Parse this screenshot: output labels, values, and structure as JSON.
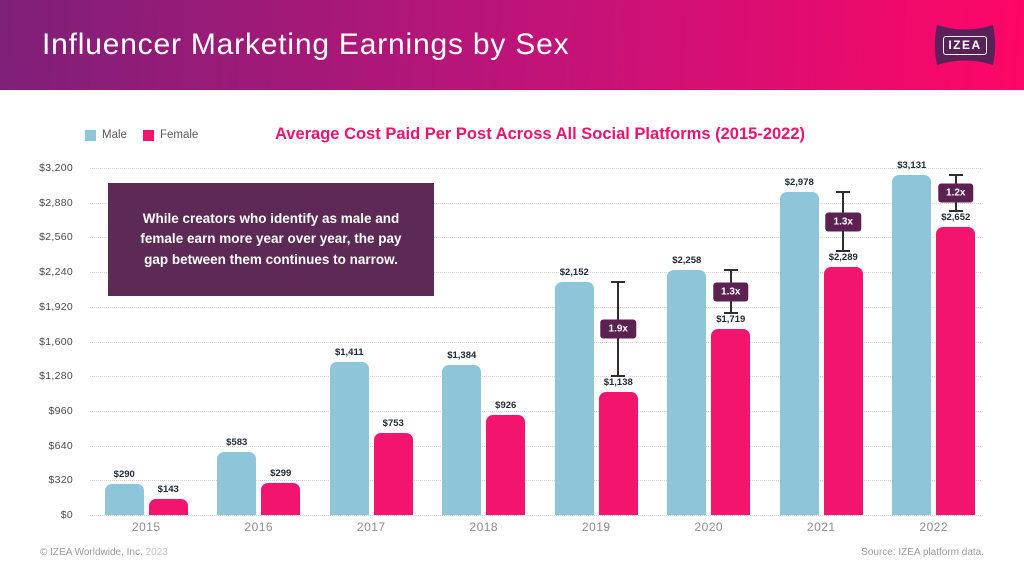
{
  "header": {
    "title": "Influencer Marketing Earnings by Sex",
    "logo_text": "IZEA"
  },
  "brand_colors": {
    "header_gradient_left": "#7e2078",
    "header_gradient_right": "#fe0766",
    "logo_background": "#5a2158",
    "title_pink": "#ef136e",
    "annotation_purple": "#5c2a55"
  },
  "legend": {
    "items": [
      {
        "label": "Male",
        "color": "#8ec5d9"
      },
      {
        "label": "Female",
        "color": "#f3156d"
      }
    ]
  },
  "chart": {
    "title": "Average Cost Paid Per Post Across All Social Platforms (2015-2022)"
  },
  "annotation": {
    "text": "While creators who identify as male and female earn more year over year, the pay gap between them continues to narrow."
  },
  "chart_data": {
    "type": "bar",
    "title": "Average Cost Paid Per Post Across All Social Platforms (2015-2022)",
    "categories": [
      "2015",
      "2016",
      "2017",
      "2018",
      "2019",
      "2020",
      "2021",
      "2022"
    ],
    "series": [
      {
        "name": "Male",
        "color": "#8ec5d9",
        "values": [
          290,
          583,
          1411,
          1384,
          2152,
          2258,
          2978,
          3131
        ]
      },
      {
        "name": "Female",
        "color": "#f3156d",
        "values": [
          143,
          299,
          753,
          926,
          1138,
          1719,
          2289,
          2652
        ]
      }
    ],
    "pay_gap_multipliers": {
      "2019": "1.9x",
      "2020": "1.3x",
      "2021": "1.3x",
      "2022": "1.2x"
    },
    "multiplier_badge_color": "#5c2150",
    "xlabel": "",
    "ylabel": "",
    "ylim": [
      0,
      3200
    ],
    "ytick_step": 320,
    "ytick_prefix": "$",
    "grid": "horizontal-dotted",
    "legend_position": "top-left"
  },
  "footer": {
    "copyright": "© IZEA Worldwide, Inc.",
    "year": "2023",
    "source": "Source: IZEA platform data."
  }
}
